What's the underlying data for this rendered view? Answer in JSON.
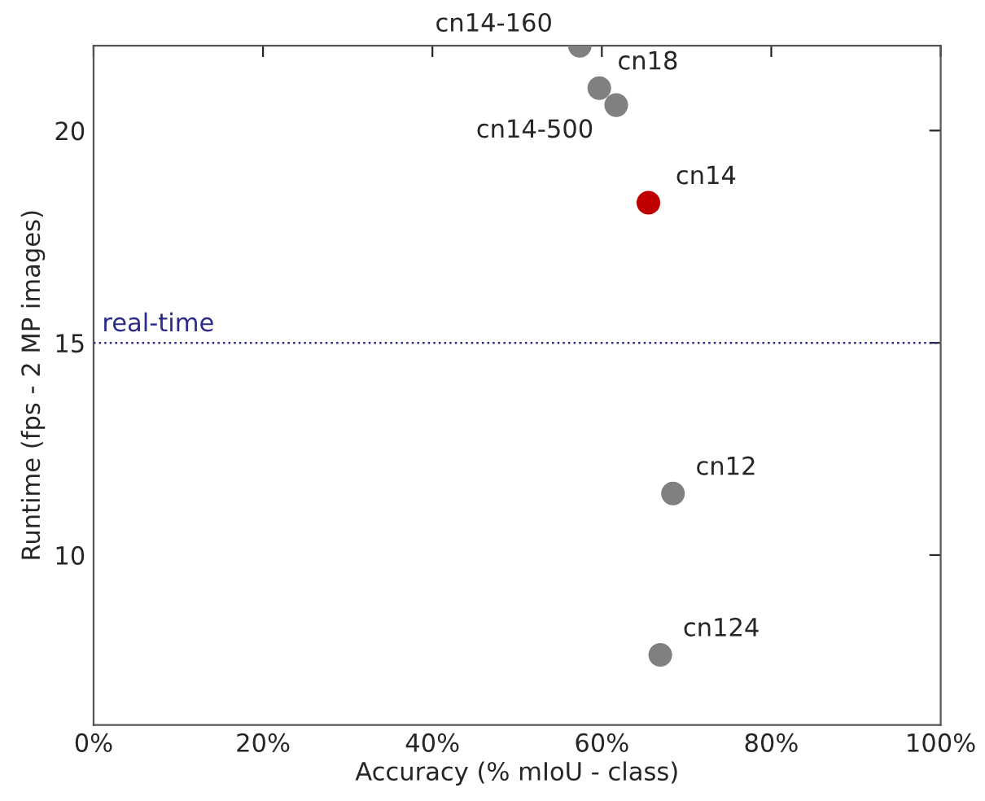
{
  "chart_data": {
    "type": "scatter",
    "xlabel": "Accuracy (% mIoU - class)",
    "ylabel": "Runtime (fps - 2 MP images)",
    "x": [
      57.4,
      59.7,
      61.7,
      65.5,
      68.4,
      66.9
    ],
    "values": [
      22.0,
      21.0,
      20.6,
      18.3,
      11.45,
      7.65
    ],
    "colors": [
      "#808080",
      "#808080",
      "#808080",
      "#c00000",
      "#808080",
      "#808080"
    ],
    "marker": "circle",
    "xlim": [
      0,
      100
    ],
    "ylim": [
      6,
      22
    ],
    "xticks": [
      {
        "value": 0,
        "label": "0%"
      },
      {
        "value": 20,
        "label": "20%"
      },
      {
        "value": 40,
        "label": "40%"
      },
      {
        "value": 60,
        "label": "60%"
      },
      {
        "value": 80,
        "label": "80%"
      },
      {
        "value": 100,
        "label": "100%"
      }
    ],
    "yticks": [
      10,
      15,
      20
    ],
    "ref_lines": [
      {
        "axis": "y",
        "value": 15,
        "label": "real-time",
        "color": "#2b2b8c",
        "line_style": "dotted"
      }
    ],
    "annotations": [
      {
        "text": "cn14-160",
        "x": 57.4,
        "y": 22.0
      },
      {
        "text": "cn18",
        "x": 59.7,
        "y": 21.0
      },
      {
        "text": "cn14-500",
        "x": 61.7,
        "y": 20.6
      },
      {
        "text": "cn14",
        "x": 65.5,
        "y": 18.3
      },
      {
        "text": "cn12",
        "x": 68.4,
        "y": 11.45
      },
      {
        "text": "cn124",
        "x": 66.9,
        "y": 7.65
      }
    ],
    "grid": false,
    "legend": false
  }
}
